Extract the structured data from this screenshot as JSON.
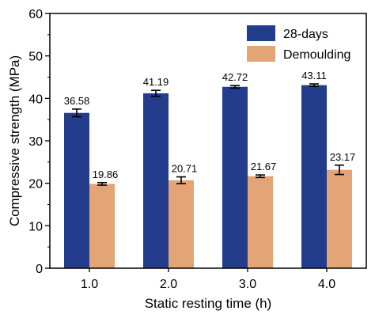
{
  "chart_data": {
    "type": "bar",
    "title": "",
    "xlabel": "Static resting time (h)",
    "ylabel": "Compressive strength (MPa)",
    "ylim": [
      0,
      60
    ],
    "yticks": [
      "0",
      "10",
      "20",
      "30",
      "40",
      "50",
      "60"
    ],
    "categories": [
      "1.0",
      "2.0",
      "3.0",
      "4.0"
    ],
    "series": [
      {
        "name": "28-days",
        "color": "#233c8c",
        "values": [
          36.58,
          41.19,
          42.72,
          43.11
        ],
        "labels": [
          "36.58",
          "41.19",
          "42.72",
          "43.11"
        ],
        "errors": [
          0.9,
          0.7,
          0.3,
          0.3
        ]
      },
      {
        "name": "Demoulding",
        "color": "#e3a476",
        "values": [
          19.86,
          20.71,
          21.67,
          23.17
        ],
        "labels": [
          "19.86",
          "20.71",
          "21.67",
          "23.17"
        ],
        "errors": [
          0.3,
          0.8,
          0.3,
          1.1
        ]
      }
    ],
    "legend_position": "top-right",
    "grid": false
  }
}
